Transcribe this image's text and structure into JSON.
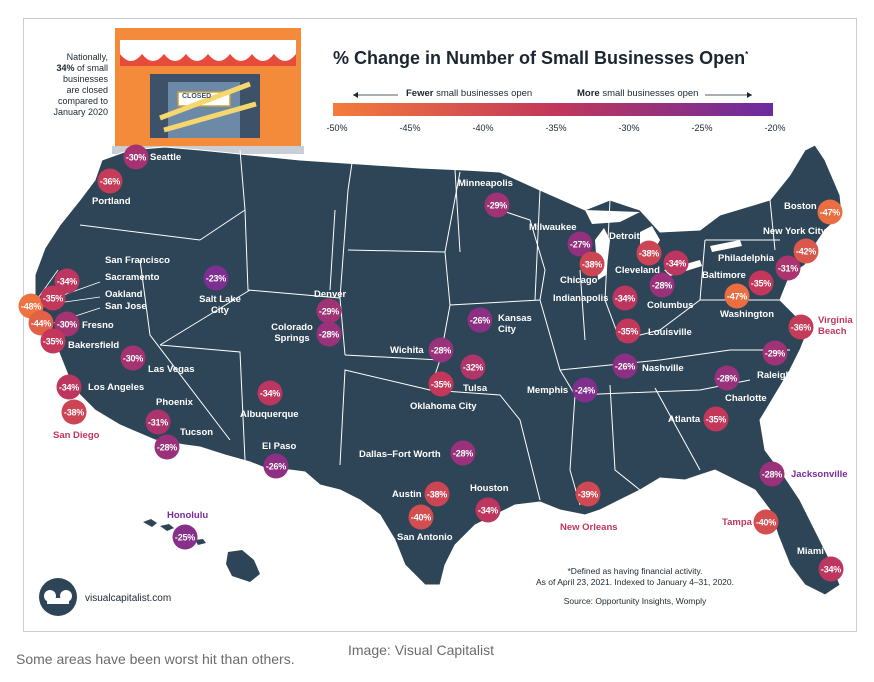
{
  "title": "% Change in Number of Small Businesses Open",
  "title_mark": "*",
  "national_note": {
    "line1": "Nationally,",
    "highlight": "34%",
    "line2": "of small",
    "line3": "businesses",
    "line4": "are closed",
    "line5": "compared to",
    "line6": "January 2020"
  },
  "store_sign": "CLOSED",
  "legend": {
    "fewer_bold": "Fewer",
    "fewer_text": "small businesses open",
    "more_bold": "More",
    "more_text": "small businesses open",
    "ticks": [
      "-50%",
      "-45%",
      "-40%",
      "-35%",
      "-30%",
      "-25%",
      "-20%"
    ],
    "color_low": "#f47c3c",
    "color_mid": "#c2375a",
    "color_high": "#6a2ca0"
  },
  "cities": [
    {
      "name": "Seattle",
      "value": "-30%",
      "v": -30
    },
    {
      "name": "Portland",
      "value": "-36%",
      "v": -36
    },
    {
      "name": "San Francisco",
      "value": "-48%",
      "v": -48
    },
    {
      "name": "Sacramento",
      "value": "-34%",
      "v": -34
    },
    {
      "name": "Oakland",
      "value": "-35%",
      "v": -35
    },
    {
      "name": "San Jose",
      "value": "-44%",
      "v": -44
    },
    {
      "name": "Fresno",
      "value": "-30%",
      "v": -30
    },
    {
      "name": "Bakersfield",
      "value": "-35%",
      "v": -35
    },
    {
      "name": "Los Angeles",
      "value": "-34%",
      "v": -34
    },
    {
      "name": "San Diego",
      "value": "-38%",
      "v": -38
    },
    {
      "name": "Las Vegas",
      "value": "-30%",
      "v": -30
    },
    {
      "name": "Salt Lake City",
      "value": "-23%",
      "v": -23
    },
    {
      "name": "Phoenix",
      "value": "-31%",
      "v": -31
    },
    {
      "name": "Tucson",
      "value": "-28%",
      "v": -28
    },
    {
      "name": "Albuquerque",
      "value": "-34%",
      "v": -34
    },
    {
      "name": "El Paso",
      "value": "-26%",
      "v": -26
    },
    {
      "name": "Denver",
      "value": "-29%",
      "v": -29
    },
    {
      "name": "Colorado Springs",
      "value": "-28%",
      "v": -28
    },
    {
      "name": "Minneapolis",
      "value": "-29%",
      "v": -29
    },
    {
      "name": "Kansas City",
      "value": "-26%",
      "v": -26
    },
    {
      "name": "Wichita",
      "value": "-28%",
      "v": -28
    },
    {
      "name": "Tulsa",
      "value": "-32%",
      "v": -32
    },
    {
      "name": "Oklahoma City",
      "value": "-35%",
      "v": -35
    },
    {
      "name": "Dallas–Fort Worth",
      "value": "-28%",
      "v": -28
    },
    {
      "name": "Austin",
      "value": "-38%",
      "v": -38
    },
    {
      "name": "San Antonio",
      "value": "-40%",
      "v": -40
    },
    {
      "name": "Houston",
      "value": "-34%",
      "v": -34
    },
    {
      "name": "Milwaukee",
      "value": "-27%",
      "v": -27
    },
    {
      "name": "Chicago",
      "value": "-38%",
      "v": -38
    },
    {
      "name": "Detroit",
      "value": "-38%",
      "v": -38
    },
    {
      "name": "Indianapolis",
      "value": "-34%",
      "v": -34
    },
    {
      "name": "Cleveland",
      "value": "-34%",
      "v": -34
    },
    {
      "name": "Columbus",
      "value": "-28%",
      "v": -28
    },
    {
      "name": "Louisville",
      "value": "-35%",
      "v": -35
    },
    {
      "name": "Nashville",
      "value": "-26%",
      "v": -26
    },
    {
      "name": "Memphis",
      "value": "-24%",
      "v": -24
    },
    {
      "name": "New Orleans",
      "value": "-39%",
      "v": -39
    },
    {
      "name": "Atlanta",
      "value": "-35%",
      "v": -35
    },
    {
      "name": "Charlotte",
      "value": "-28%",
      "v": -28
    },
    {
      "name": "Raleigh",
      "value": "-29%",
      "v": -29
    },
    {
      "name": "Virginia Beach",
      "value": "-36%",
      "v": -36
    },
    {
      "name": "Washington",
      "value": "-47%",
      "v": -47
    },
    {
      "name": "Baltimore",
      "value": "-35%",
      "v": -35
    },
    {
      "name": "Philadelphia",
      "value": "-31%",
      "v": -31
    },
    {
      "name": "New York City",
      "value": "-42%",
      "v": -42
    },
    {
      "name": "Boston",
      "value": "-47%",
      "v": -47
    },
    {
      "name": "Jacksonville",
      "value": "-28%",
      "v": -28
    },
    {
      "name": "Tampa",
      "value": "-40%",
      "v": -40
    },
    {
      "name": "Miami",
      "value": "-34%",
      "v": -34
    },
    {
      "name": "Honolulu",
      "value": "-25%",
      "v": -25
    }
  ],
  "footnote": {
    "line1": "*Defined as having financial activity.",
    "line2": "As of April 23, 2021. Indexed to January 4–31, 2020.",
    "source": "Source: Opportunity Insights, Womply"
  },
  "brand": "visualcapitalist.com",
  "caption_left": "Some areas have been worst hit than others.",
  "caption_right": "Image: Visual Capitalist"
}
